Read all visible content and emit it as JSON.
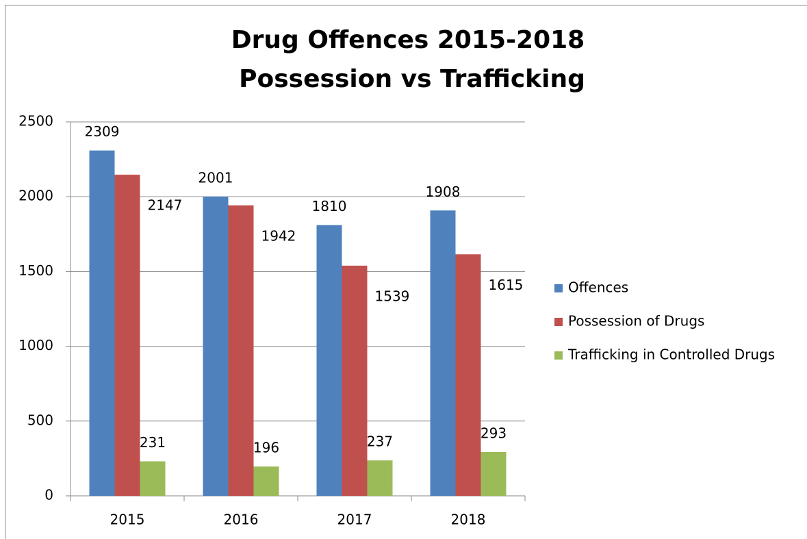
{
  "chart_data": {
    "type": "bar",
    "title": [
      "Drug Offences 2015-2018",
      "Possession vs Trafficking"
    ],
    "categories": [
      "2015",
      "2016",
      "2017",
      "2018"
    ],
    "series": [
      {
        "name": "Offences",
        "color": "#4f81bd",
        "values": [
          2309,
          2001,
          1810,
          1908
        ]
      },
      {
        "name": "Possession of Drugs",
        "color": "#c0504d",
        "values": [
          2147,
          1942,
          1539,
          1615
        ]
      },
      {
        "name": "Trafficking in Controlled Drugs",
        "color": "#9bbb59",
        "values": [
          231,
          196,
          237,
          293
        ]
      }
    ],
    "ylim": [
      0,
      2500
    ],
    "yticks": [
      0,
      500,
      1000,
      1500,
      2000,
      2500
    ],
    "grid": true,
    "legend": "right"
  }
}
